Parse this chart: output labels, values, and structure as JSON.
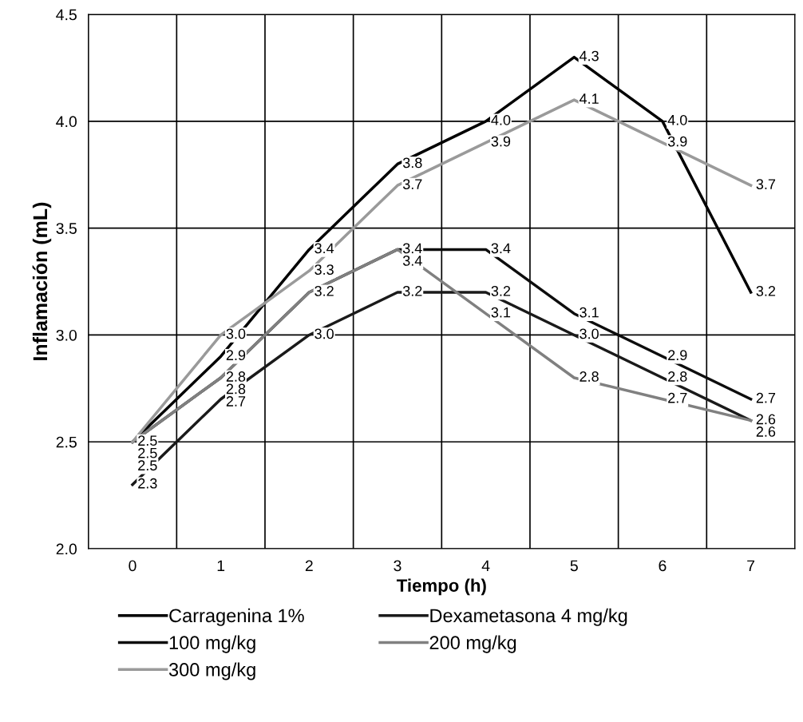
{
  "chart_data": {
    "type": "line",
    "xlabel": "Tiempo (h)",
    "ylabel": "Inflamación (mL)",
    "categories": [
      "0",
      "1",
      "2",
      "3",
      "4",
      "5",
      "6",
      "7"
    ],
    "series": [
      {
        "name": "Carragenina 1%",
        "color": "#000000",
        "values": [
          2.5,
          2.9,
          3.4,
          3.8,
          4.0,
          4.3,
          4.0,
          3.2
        ],
        "value_labels": [
          "2.5",
          "2.9",
          "3.4",
          "3.8",
          "4.0",
          "4.3",
          "4.0",
          "3.2"
        ]
      },
      {
        "name": "Dexametasona 4 mg/kg",
        "color": "#1a1a1a",
        "values": [
          2.3,
          2.7,
          3.0,
          3.2,
          3.2,
          3.0,
          2.8,
          2.6
        ],
        "value_labels": [
          "2.3",
          "2.7",
          "3.0",
          "3.2",
          "3.2",
          "3.0",
          "2.8",
          "2.6"
        ]
      },
      {
        "name": "100 mg/kg",
        "color": "#0d0d0d",
        "values": [
          2.5,
          2.8,
          3.2,
          3.4,
          3.4,
          3.1,
          2.9,
          2.7
        ],
        "value_labels": [
          "2.5",
          "2.8",
          "3.2",
          "3.4",
          "3.4",
          "3.1",
          "2.9",
          "2.7"
        ]
      },
      {
        "name": "200 mg/kg",
        "color": "#808080",
        "values": [
          2.5,
          2.8,
          3.2,
          3.4,
          3.1,
          2.8,
          2.7,
          2.6
        ],
        "value_labels": [
          null,
          "2.8",
          null,
          "3.4",
          "3.1",
          "2.8",
          "2.7",
          "2.6"
        ]
      },
      {
        "name": "300 mg/kg",
        "color": "#9a9a9a",
        "values": [
          2.5,
          3.0,
          3.3,
          3.7,
          3.9,
          4.1,
          3.9,
          3.7
        ],
        "value_labels": [
          "2.5",
          "3.0",
          "3.3",
          "3.7",
          "3.9",
          "4.1",
          "3.9",
          "3.7"
        ]
      }
    ],
    "ylim": [
      2.0,
      4.5
    ],
    "yticks": [
      {
        "value": 2.0,
        "label": "2.0"
      },
      {
        "value": 2.5,
        "label": "2.5"
      },
      {
        "value": 3.0,
        "label": "3.0"
      },
      {
        "value": 3.5,
        "label": "3.5"
      },
      {
        "value": 4.0,
        "label": "4.0"
      },
      {
        "value": 4.5,
        "label": "4.5"
      }
    ],
    "grid": true,
    "legend": "bottom",
    "marker": "none",
    "line_style": "solid"
  }
}
